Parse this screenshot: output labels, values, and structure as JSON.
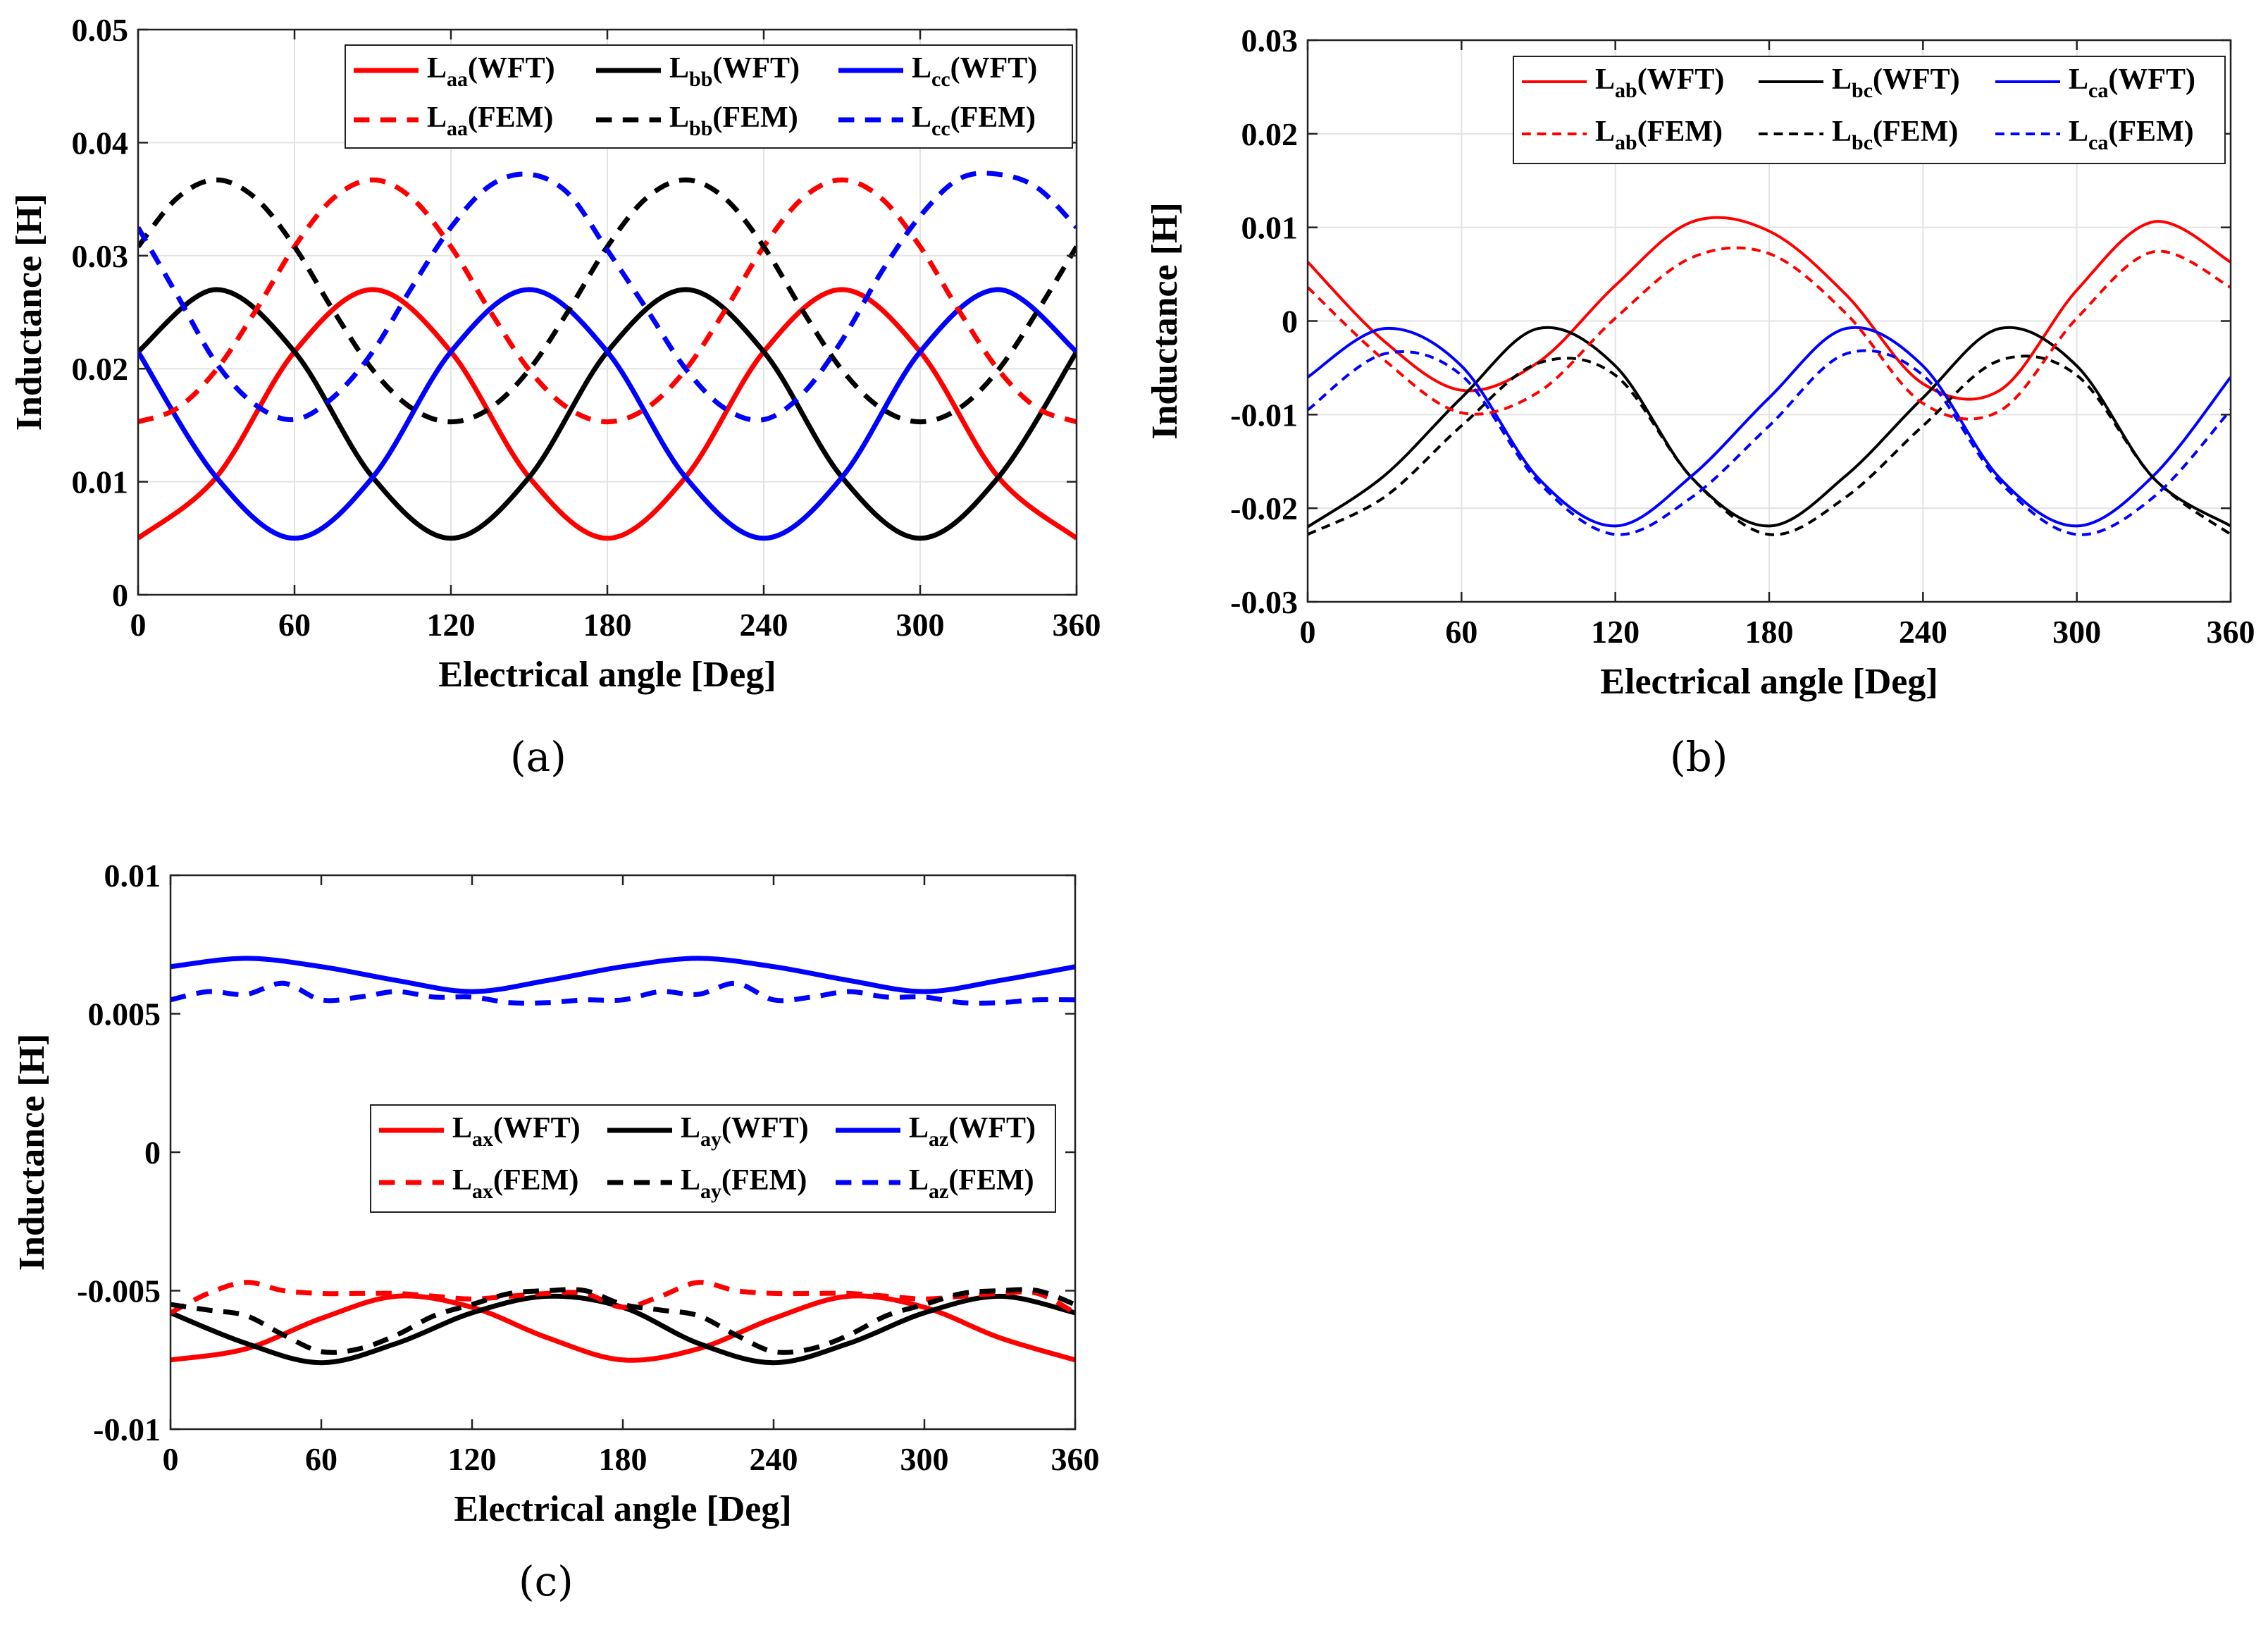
{
  "chart_data": [
    {
      "type": "line",
      "caption": "(a)",
      "xlabel": "Electrical angle [Deg]",
      "ylabel": "Inductance [H]",
      "xlim": [
        0,
        360
      ],
      "ylim": [
        0,
        0.05
      ],
      "xticks": [
        "0",
        "60",
        "120",
        "180",
        "240",
        "300",
        "360"
      ],
      "yticks": [
        "0",
        "0.01",
        "0.02",
        "0.03",
        "0.04",
        "0.05"
      ],
      "grid": true,
      "legend_position": "top-right",
      "series": [
        {
          "base": "L",
          "sub": "aa",
          "suffix": "(WFT)",
          "color": "#ff0000",
          "dash": "solid",
          "x": [
            0,
            30,
            60,
            90,
            120,
            150,
            180,
            210,
            240,
            270,
            300,
            330,
            360
          ],
          "y": [
            0.005,
            0.0104,
            0.0215,
            0.027,
            0.0215,
            0.0104,
            0.005,
            0.0104,
            0.0215,
            0.027,
            0.0215,
            0.0104,
            0.005
          ]
        },
        {
          "base": "L",
          "sub": "bb",
          "suffix": "(WFT)",
          "color": "#000000",
          "dash": "solid",
          "x": [
            0,
            30,
            60,
            90,
            120,
            150,
            180,
            210,
            240,
            270,
            300,
            330,
            360
          ],
          "y": [
            0.0215,
            0.027,
            0.0215,
            0.0104,
            0.005,
            0.0104,
            0.0215,
            0.027,
            0.0215,
            0.0104,
            0.005,
            0.0104,
            0.0215
          ]
        },
        {
          "base": "L",
          "sub": "cc",
          "suffix": "(WFT)",
          "color": "#0000ff",
          "dash": "solid",
          "x": [
            0,
            30,
            60,
            90,
            120,
            150,
            180,
            210,
            240,
            270,
            300,
            330,
            360
          ],
          "y": [
            0.0215,
            0.0104,
            0.005,
            0.0104,
            0.0215,
            0.027,
            0.0215,
            0.0104,
            0.005,
            0.0104,
            0.0215,
            0.027,
            0.0215
          ]
        },
        {
          "base": "L",
          "sub": "aa",
          "suffix": "(FEM)",
          "color": "#ff0000",
          "dash": "dashed",
          "x": [
            0,
            15,
            30,
            45,
            60,
            75,
            90,
            105,
            120,
            135,
            150,
            165,
            180,
            195,
            210,
            225,
            240,
            255,
            270,
            285,
            300,
            315,
            330,
            345,
            360
          ],
          "y": [
            0.0153,
            0.0165,
            0.0199,
            0.0251,
            0.0308,
            0.0351,
            0.0367,
            0.0351,
            0.0308,
            0.0251,
            0.0199,
            0.0165,
            0.0153,
            0.0165,
            0.0199,
            0.0251,
            0.0308,
            0.0351,
            0.0367,
            0.0351,
            0.0308,
            0.0251,
            0.0199,
            0.0165,
            0.0153
          ]
        },
        {
          "base": "L",
          "sub": "bb",
          "suffix": "(FEM)",
          "color": "#000000",
          "dash": "dashed",
          "x": [
            0,
            15,
            30,
            45,
            60,
            75,
            90,
            105,
            120,
            135,
            150,
            165,
            180,
            195,
            210,
            225,
            240,
            255,
            270,
            285,
            300,
            315,
            330,
            345,
            360
          ],
          "y": [
            0.0308,
            0.0351,
            0.0367,
            0.0351,
            0.0308,
            0.0251,
            0.0199,
            0.0165,
            0.0153,
            0.0165,
            0.0199,
            0.0251,
            0.0308,
            0.0351,
            0.0367,
            0.0351,
            0.0308,
            0.0251,
            0.0199,
            0.0165,
            0.0153,
            0.0165,
            0.0199,
            0.0251,
            0.0308
          ]
        },
        {
          "base": "L",
          "sub": "cc",
          "suffix": "(FEM)",
          "color": "#0000ff",
          "dash": "dashed",
          "x": [
            0,
            15,
            30,
            45,
            60,
            75,
            90,
            105,
            120,
            135,
            150,
            165,
            180,
            195,
            210,
            225,
            240,
            255,
            270,
            285,
            300,
            315,
            330,
            345,
            360
          ],
          "y": [
            0.0325,
            0.0265,
            0.0205,
            0.0168,
            0.0155,
            0.0175,
            0.0215,
            0.0272,
            0.0325,
            0.0362,
            0.0372,
            0.0355,
            0.0305,
            0.0253,
            0.02,
            0.0165,
            0.0155,
            0.0178,
            0.0225,
            0.0285,
            0.0335,
            0.0368,
            0.0372,
            0.036,
            0.0325
          ]
        }
      ]
    },
    {
      "type": "line",
      "caption": "(b)",
      "xlabel": "Electrical angle [Deg]",
      "ylabel": "Inductance [H]",
      "xlim": [
        0,
        360
      ],
      "ylim": [
        -0.03,
        0.03
      ],
      "xticks": [
        "0",
        "60",
        "120",
        "180",
        "240",
        "300",
        "360"
      ],
      "yticks": [
        "-0.03",
        "-0.02",
        "-0.01",
        "0",
        "0.01",
        "0.02",
        "0.03"
      ],
      "grid": true,
      "legend_position": "top-right",
      "series": [
        {
          "base": "L",
          "sub": "ab",
          "suffix": "(WFT)",
          "color": "#ff0000",
          "dash": "solid",
          "x": [
            0,
            30,
            60,
            90,
            120,
            150,
            180,
            210,
            240,
            270,
            300,
            330,
            360
          ],
          "y": [
            0.0063,
            -0.0022,
            -0.0074,
            -0.0044,
            0.0038,
            0.0106,
            0.0096,
            0.0028,
            -0.0067,
            -0.0074,
            0.0033,
            0.0106,
            0.0063
          ]
        },
        {
          "base": "L",
          "sub": "bc",
          "suffix": "(WFT)",
          "color": "#000000",
          "dash": "solid",
          "x": [
            0,
            30,
            60,
            90,
            120,
            150,
            180,
            210,
            240,
            270,
            300,
            330,
            360
          ],
          "y": [
            -0.022,
            -0.0165,
            -0.0082,
            -0.0008,
            -0.0048,
            -0.0168,
            -0.0219,
            -0.0165,
            -0.0082,
            -0.0008,
            -0.0048,
            -0.0168,
            -0.0219
          ]
        },
        {
          "base": "L",
          "sub": "ca",
          "suffix": "(WFT)",
          "color": "#0000ff",
          "dash": "solid",
          "x": [
            0,
            30,
            60,
            90,
            120,
            150,
            180,
            210,
            240,
            270,
            300,
            330,
            360
          ],
          "y": [
            -0.006,
            -0.0008,
            -0.0048,
            -0.0168,
            -0.0219,
            -0.0165,
            -0.0082,
            -0.0008,
            -0.0048,
            -0.0168,
            -0.0219,
            -0.0165,
            -0.006
          ]
        },
        {
          "base": "L",
          "sub": "ab",
          "suffix": "(FEM)",
          "color": "#ff0000",
          "dash": "dashed",
          "x": [
            0,
            30,
            60,
            90,
            120,
            150,
            180,
            210,
            240,
            270,
            300,
            330,
            360
          ],
          "y": [
            0.0036,
            -0.0042,
            -0.0098,
            -0.0076,
            0.0003,
            0.0068,
            0.0072,
            0.0008,
            -0.0088,
            -0.0096,
            0.0003,
            0.0074,
            0.0036
          ]
        },
        {
          "base": "L",
          "sub": "bc",
          "suffix": "(FEM)",
          "color": "#000000",
          "dash": "dashed",
          "x": [
            0,
            30,
            60,
            90,
            120,
            150,
            180,
            210,
            240,
            270,
            300,
            330,
            360
          ],
          "y": [
            -0.0228,
            -0.0188,
            -0.0112,
            -0.0045,
            -0.0058,
            -0.0168,
            -0.0228,
            -0.0188,
            -0.0112,
            -0.0042,
            -0.0058,
            -0.0168,
            -0.0228
          ]
        },
        {
          "base": "L",
          "sub": "ca",
          "suffix": "(FEM)",
          "color": "#0000ff",
          "dash": "dashed",
          "x": [
            0,
            30,
            60,
            90,
            120,
            150,
            180,
            210,
            240,
            270,
            300,
            330,
            360
          ],
          "y": [
            -0.0095,
            -0.0035,
            -0.0058,
            -0.0172,
            -0.0228,
            -0.0188,
            -0.0112,
            -0.0035,
            -0.0058,
            -0.0172,
            -0.0228,
            -0.0188,
            -0.0095
          ]
        }
      ]
    },
    {
      "type": "line",
      "caption": "(c)",
      "xlabel": "Electrical angle [Deg]",
      "ylabel": "Inductance [H]",
      "xlim": [
        0,
        360
      ],
      "ylim": [
        -0.01,
        0.01
      ],
      "xticks": [
        "0",
        "60",
        "120",
        "180",
        "240",
        "300",
        "360"
      ],
      "yticks": [
        "-0.01",
        "-0.005",
        "0",
        "0.005",
        "0.01"
      ],
      "grid": false,
      "legend_position": "center-right",
      "series": [
        {
          "base": "L",
          "sub": "ax",
          "suffix": "(WFT)",
          "color": "#ff0000",
          "dash": "solid",
          "x": [
            0,
            30,
            60,
            90,
            120,
            150,
            180,
            210,
            240,
            270,
            300,
            330,
            360
          ],
          "y": [
            -0.0075,
            -0.0071,
            -0.006,
            -0.0052,
            -0.0056,
            -0.0067,
            -0.0075,
            -0.0071,
            -0.006,
            -0.0052,
            -0.0056,
            -0.0067,
            -0.0075
          ]
        },
        {
          "base": "L",
          "sub": "ay",
          "suffix": "(WFT)",
          "color": "#000000",
          "dash": "solid",
          "x": [
            0,
            30,
            60,
            90,
            120,
            150,
            180,
            210,
            240,
            270,
            300,
            330,
            360
          ],
          "y": [
            -0.0058,
            -0.0069,
            -0.0076,
            -0.0069,
            -0.0058,
            -0.0052,
            -0.0056,
            -0.0069,
            -0.0076,
            -0.0069,
            -0.0058,
            -0.0052,
            -0.0058
          ]
        },
        {
          "base": "L",
          "sub": "az",
          "suffix": "(WFT)",
          "color": "#0000ff",
          "dash": "solid",
          "x": [
            0,
            30,
            60,
            90,
            120,
            150,
            180,
            210,
            240,
            270,
            300,
            330,
            360
          ],
          "y": [
            0.0067,
            0.007,
            0.0067,
            0.0062,
            0.0058,
            0.0062,
            0.0067,
            0.007,
            0.0067,
            0.0062,
            0.0058,
            0.0062,
            0.0067
          ]
        },
        {
          "base": "L",
          "sub": "ax",
          "suffix": "(FEM)",
          "color": "#ff0000",
          "dash": "dashed",
          "x": [
            0,
            15,
            30,
            45,
            60,
            75,
            90,
            105,
            120,
            135,
            150,
            165,
            180,
            195,
            210,
            225,
            240,
            255,
            270,
            285,
            300,
            315,
            330,
            345,
            360
          ],
          "y": [
            -0.0058,
            -0.0051,
            -0.0047,
            -0.005,
            -0.0051,
            -0.0051,
            -0.0051,
            -0.0052,
            -0.0053,
            -0.0052,
            -0.0051,
            -0.0051,
            -0.0056,
            -0.0052,
            -0.0047,
            -0.005,
            -0.0051,
            -0.0051,
            -0.0051,
            -0.0052,
            -0.0053,
            -0.0052,
            -0.0051,
            -0.0051,
            -0.0058
          ]
        },
        {
          "base": "L",
          "sub": "ay",
          "suffix": "(FEM)",
          "color": "#000000",
          "dash": "dashed",
          "x": [
            0,
            15,
            30,
            45,
            60,
            75,
            90,
            105,
            120,
            135,
            150,
            165,
            180,
            195,
            210,
            225,
            240,
            255,
            270,
            285,
            300,
            315,
            330,
            345,
            360
          ],
          "y": [
            -0.0055,
            -0.0057,
            -0.0059,
            -0.0066,
            -0.0072,
            -0.0071,
            -0.0066,
            -0.0059,
            -0.0055,
            -0.0051,
            -0.005,
            -0.005,
            -0.0055,
            -0.0057,
            -0.0059,
            -0.0066,
            -0.0072,
            -0.0071,
            -0.0066,
            -0.0059,
            -0.0055,
            -0.0051,
            -0.005,
            -0.005,
            -0.0055
          ]
        },
        {
          "base": "L",
          "sub": "az",
          "suffix": "(FEM)",
          "color": "#0000ff",
          "dash": "dashed",
          "x": [
            0,
            15,
            30,
            45,
            60,
            75,
            90,
            105,
            120,
            135,
            150,
            165,
            180,
            195,
            210,
            225,
            240,
            255,
            270,
            285,
            300,
            315,
            330,
            345,
            360
          ],
          "y": [
            0.0055,
            0.0058,
            0.0057,
            0.0061,
            0.0055,
            0.0056,
            0.0058,
            0.0056,
            0.0056,
            0.0054,
            0.0054,
            0.0055,
            0.0055,
            0.0058,
            0.0057,
            0.0061,
            0.0055,
            0.0056,
            0.0058,
            0.0056,
            0.0056,
            0.0054,
            0.0054,
            0.0055,
            0.0055
          ]
        }
      ]
    }
  ]
}
